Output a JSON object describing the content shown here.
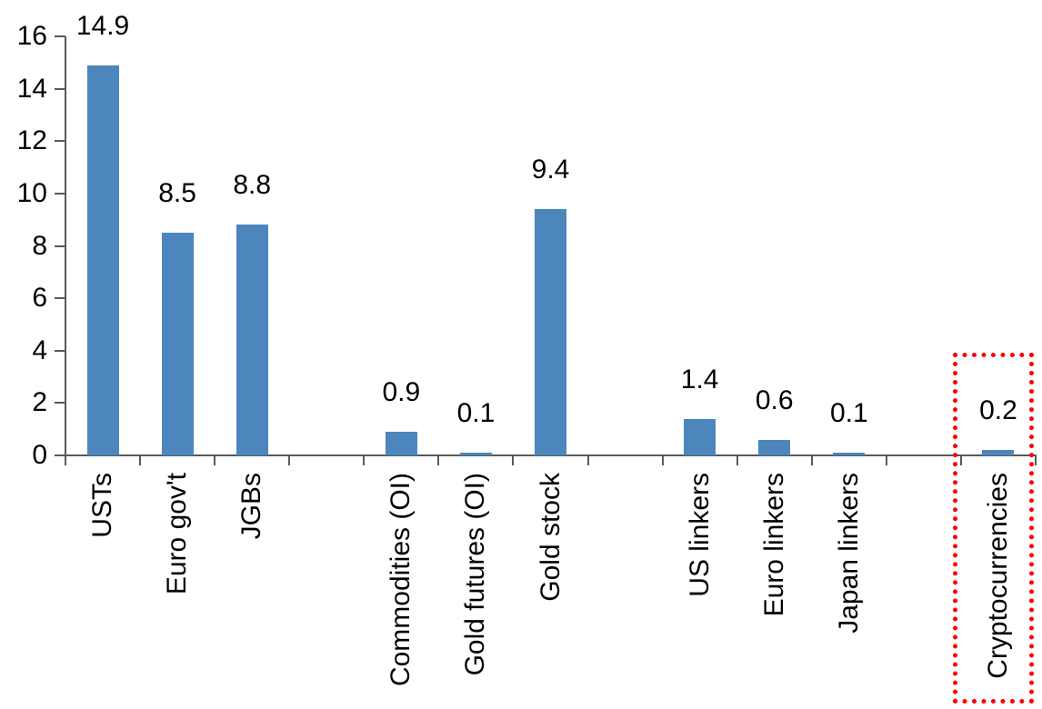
{
  "chart_data": {
    "type": "bar",
    "title": "",
    "xlabel": "",
    "ylabel": "",
    "categories": [
      "USTs",
      "Euro gov't",
      "JGBs",
      "",
      "Commodities (OI)",
      "Gold futures (OI)",
      "Gold stock",
      "",
      "US linkers",
      "Euro linkers",
      "Japan linkers",
      "",
      "Cryptocurrencies"
    ],
    "values": [
      14.9,
      8.5,
      8.8,
      null,
      0.9,
      0.1,
      9.4,
      null,
      1.4,
      0.6,
      0.1,
      null,
      0.2
    ],
    "data_labels": [
      "14.9",
      "8.5",
      "8.8",
      "",
      "0.9",
      "0.1",
      "9.4",
      "",
      "1.4",
      "0.6",
      "0.1",
      "",
      "0.2"
    ],
    "y_ticks": [
      "0",
      "2",
      "4",
      "6",
      "8",
      "10",
      "12",
      "14",
      "16"
    ],
    "ylim": [
      0,
      16
    ],
    "y_step": 2,
    "grid": false,
    "legend": false,
    "bar_color": "#4C86BD",
    "axis_color": "#595959",
    "text_color": "#000000",
    "highlight": {
      "category": "Cryptocurrencies",
      "index": 12,
      "style": "red-dotted-rectangle",
      "color": "#FF0000"
    }
  }
}
